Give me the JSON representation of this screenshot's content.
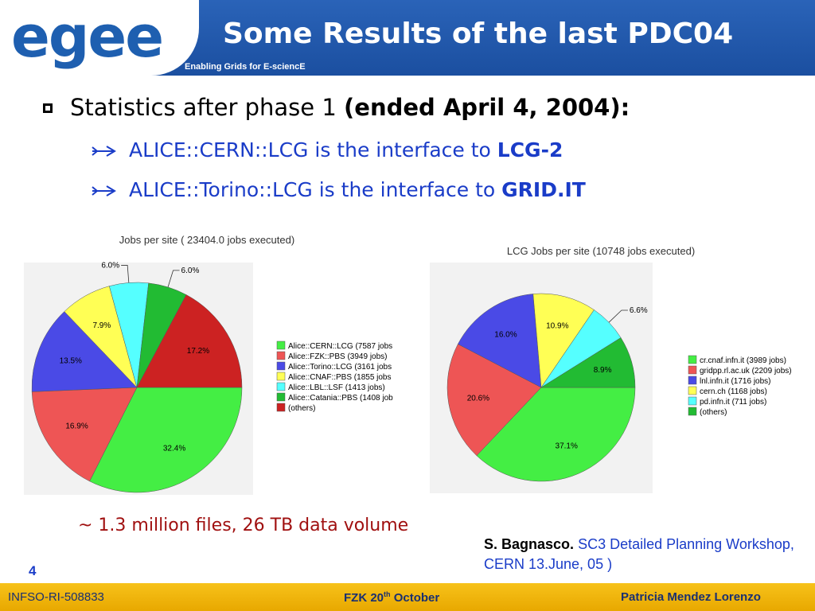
{
  "header": {
    "logo": "egee",
    "title": "Some Results of the last PDC04",
    "tagline": "Enabling Grids for E-sciencE"
  },
  "bullets": [
    {
      "text": "Statistics after phase 1",
      "bold": "(ended April 4, 2004):"
    }
  ],
  "sub_bullets": [
    {
      "text": "ALICE::CERN::LCG is the interface to",
      "bold": "LCG-2"
    },
    {
      "text": "ALICE::Torino::LCG is the interface to",
      "bold": "GRID.IT"
    }
  ],
  "chart_data": [
    {
      "type": "pie",
      "title": "Jobs per site ( 23404.0 jobs executed)",
      "categories": [
        "Alice::CERN::LCG (7587 jobs",
        "Alice::FZK::PBS (3949 jobs)",
        "Alice::Torino::LCG (3161 jobs",
        "Alice::CNAF::PBS (1855 jobs",
        "Alice::LBL::LSF (1413 jobs)",
        "Alice::Catania::PBS (1408 job",
        "(others)"
      ],
      "values": [
        32.4,
        16.9,
        13.5,
        7.9,
        6.0,
        6.0,
        17.2
      ],
      "value_labels": [
        "32.4%",
        "16.9%",
        "13.5%",
        "7.9%",
        "6.0%",
        "6.0%",
        "17.2%"
      ],
      "colors": [
        "#44ee44",
        "#ee5555",
        "#4a4ae6",
        "#ffff55",
        "#55ffff",
        "#22bb33",
        "#cc2222"
      ]
    },
    {
      "type": "pie",
      "title": "LCG Jobs per site (10748 jobs executed)",
      "categories": [
        "cr.cnaf.infn.it (3989 jobs)",
        "gridpp.rl.ac.uk (2209 jobs)",
        "lnl.infn.it (1716 jobs)",
        "cern.ch (1168 jobs)",
        "pd.infn.it (711 jobs)",
        "(others)"
      ],
      "values": [
        37.1,
        20.6,
        16.0,
        10.9,
        6.6,
        8.9
      ],
      "value_labels": [
        "37.1%",
        "20.6%",
        "16.0%",
        "10.9%",
        "6.6%",
        "8.9%"
      ],
      "colors": [
        "#44ee44",
        "#ee5555",
        "#4a4ae6",
        "#ffff55",
        "#55ffff",
        "#22bb33"
      ]
    }
  ],
  "note": "~ 1.3 million files, 26 TB data volume",
  "citation": {
    "author": "S. Bagnasco.",
    "text": "SC3 Detailed Planning Workshop, CERN 13.June, 05 )"
  },
  "page_number": "4",
  "footer": {
    "left": "INFSO-RI-508833",
    "center": "FZK 20",
    "center_sup": "th",
    "center_end": "October",
    "right": "Patricia Mendez Lorenzo"
  }
}
